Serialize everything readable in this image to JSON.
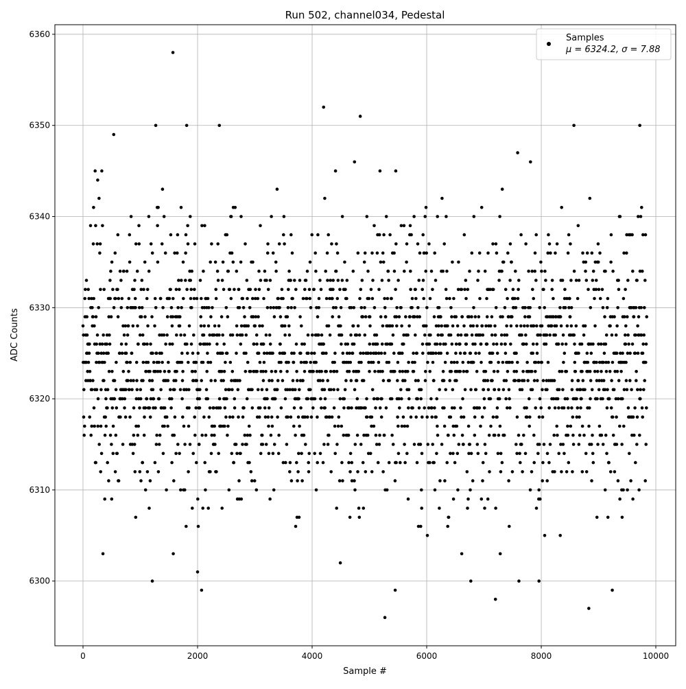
{
  "chart_data": {
    "type": "scatter",
    "title": "Run 502, channel034, Pedestal",
    "xlabel": "Sample #",
    "ylabel": "ADC Counts",
    "xlim": [
      -491,
      10347
    ],
    "ylim": [
      6292.9,
      6361.05
    ],
    "xticks": [
      0,
      2000,
      4000,
      6000,
      8000,
      10000
    ],
    "yticks": [
      6300,
      6310,
      6320,
      6330,
      6340,
      6350,
      6360
    ],
    "grid": true,
    "legend": {
      "placement": "top-right",
      "entries": [
        {
          "label": "Samples",
          "stats": "μ = 6324.2, σ = 7.88"
        }
      ]
    },
    "series": [
      {
        "name": "Samples",
        "color": "#000000",
        "marker": "circle",
        "mean": 6324.2,
        "sigma": 7.88,
        "x_range": [
          0,
          9840
        ],
        "value_range": [
          6296,
          6358
        ],
        "notable_points": [
          [
            1570,
            6358
          ],
          [
            4200,
            6352
          ],
          [
            4840,
            6351
          ],
          [
            1270,
            6350
          ],
          [
            1810,
            6350
          ],
          [
            2380,
            6350
          ],
          [
            8570,
            6350
          ],
          [
            9720,
            6350
          ],
          [
            1210,
            6300
          ],
          [
            2000,
            6301
          ],
          [
            2070,
            6299
          ],
          [
            5270,
            6296
          ],
          [
            5450,
            6299
          ],
          [
            6770,
            6300
          ],
          [
            7200,
            6298
          ],
          [
            7610,
            6300
          ],
          [
            7960,
            6300
          ],
          [
            8830,
            6297
          ],
          [
            9240,
            6299
          ]
        ]
      }
    ]
  }
}
